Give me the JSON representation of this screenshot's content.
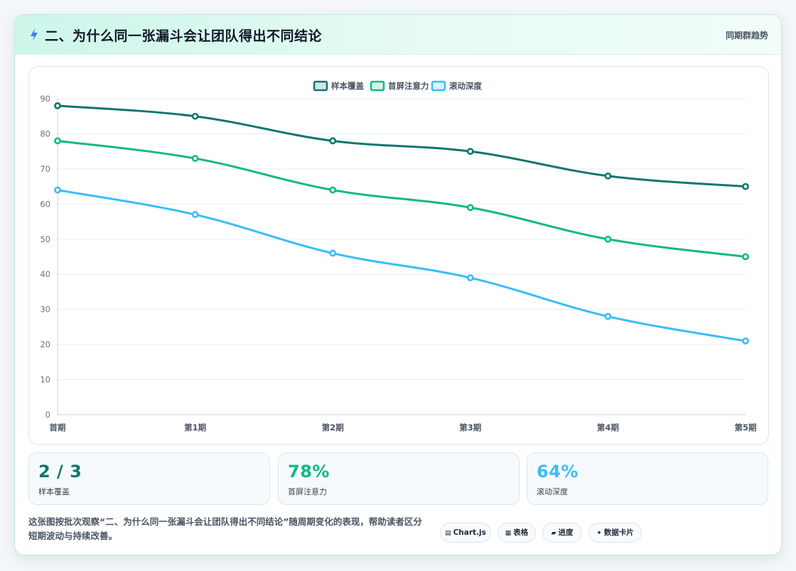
{
  "header": {
    "title": "二、为什么同一张漏斗会让团队得出不同结论",
    "tag": "同期群趋势"
  },
  "chart_data": {
    "type": "line",
    "categories": [
      "首期",
      "第1期",
      "第2期",
      "第3期",
      "第4期",
      "第5期"
    ],
    "ylim": [
      0,
      90
    ],
    "yticks": [
      0,
      10,
      20,
      30,
      40,
      50,
      60,
      70,
      80,
      90
    ],
    "grid": true,
    "legend": "top-center",
    "series": [
      {
        "name": "样本覆盖",
        "color": "#0f766e",
        "values": [
          88,
          85,
          78,
          75,
          68,
          65
        ]
      },
      {
        "name": "首屏注意力",
        "color": "#10b981",
        "values": [
          78,
          73,
          64,
          59,
          50,
          45
        ]
      },
      {
        "name": "滚动深度",
        "color": "#38bdf8",
        "values": [
          64,
          57,
          46,
          39,
          28,
          21
        ]
      }
    ]
  },
  "stats": [
    {
      "value": "2 / 3",
      "label": "样本覆盖",
      "color": "#0f766e"
    },
    {
      "value": "78%",
      "label": "首屏注意力",
      "color": "#10b981"
    },
    {
      "value": "64%",
      "label": "滚动深度",
      "color": "#38bdf8"
    }
  ],
  "note": "这张图按批次观察“二、为什么同一张漏斗会让团队得出不同结论”随周期变化的表现，帮助读者区分短期波动与持续改善。",
  "pills": [
    {
      "icon": "▤",
      "label": "Chart.js"
    },
    {
      "icon": "▦",
      "label": "表格"
    },
    {
      "icon": "▰",
      "label": "进度"
    },
    {
      "icon": "✦",
      "label": "数据卡片"
    }
  ]
}
